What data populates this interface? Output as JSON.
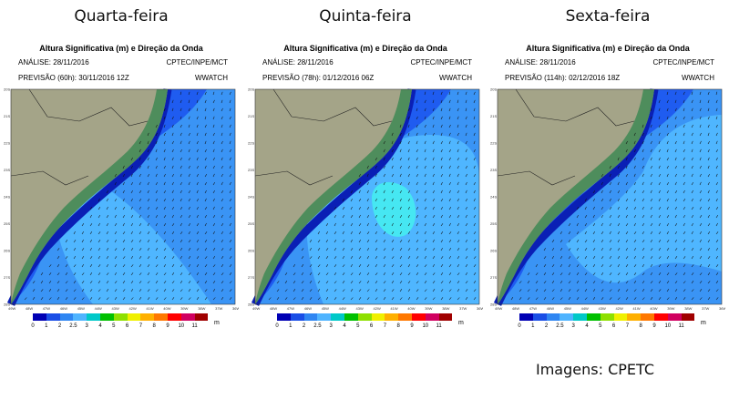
{
  "panels": [
    {
      "day": "Quarta-feira",
      "title": "Altura Significativa (m) e Direção da Onda",
      "analysis": "ANÁLISE: 28/11/2016",
      "source": "CPTEC/INPE/MCT",
      "forecast": "PREVISÃO (60h): 30/11/2016 12Z",
      "model": "WWATCH",
      "lat_labels": [
        "20S",
        "21S",
        "22S",
        "23S",
        "24S",
        "25S",
        "26S",
        "27S",
        "28S"
      ],
      "lon_labels": [
        "49W",
        "48W",
        "47W",
        "46W",
        "45W",
        "44W",
        "43W",
        "42W",
        "41W",
        "40W",
        "39W",
        "38W",
        "37W",
        "36W"
      ],
      "wave_height_levels_m": "1-2 over most of the area, 2-2.5 in a plume extending east from the coast around 24-27S"
    },
    {
      "day": "Quinta-feira",
      "title": "Altura Significativa (m) e Direção da Onda",
      "analysis": "ANÁLISE: 28/11/2016",
      "source": "CPTEC/INPE/MCT",
      "forecast": "PREVISÃO (78h): 01/12/2016 06Z",
      "model": "WWATCH",
      "lat_labels": [
        "20S",
        "21S",
        "22S",
        "23S",
        "24S",
        "25S",
        "26S",
        "27S",
        "28S"
      ],
      "lon_labels": [
        "49W",
        "48W",
        "47W",
        "46W",
        "45W",
        "44W",
        "43W",
        "42W",
        "41W",
        "40W",
        "39W",
        "38W",
        "37W",
        "36W"
      ],
      "wave_height_levels_m": "1-2 along the coast, 2-2.5 over a broad offshore region, 2.5-3 core near 24-25S 42W"
    },
    {
      "day": "Sexta-feira",
      "title": "Altura Significativa (m) e Direção da Onda",
      "analysis": "ANÁLISE: 28/11/2016",
      "source": "CPTEC/INPE/MCT",
      "forecast": "PREVISÃO (114h): 02/12/2016 18Z",
      "model": "WWATCH",
      "lat_labels": [
        "20S",
        "21S",
        "22S",
        "23S",
        "24S",
        "25S",
        "26S",
        "27S",
        "28S"
      ],
      "lon_labels": [
        "49W",
        "48W",
        "47W",
        "46W",
        "45W",
        "44W",
        "43W",
        "42W",
        "41W",
        "40W",
        "39W",
        "38W",
        "37W",
        "36W"
      ],
      "wave_height_levels_m": "1-2 near the coast and south, 2-2.5 over the northeastern offshore region"
    }
  ],
  "colorbar": {
    "labels": [
      "0",
      "1",
      "2",
      "2.5",
      "3",
      "4",
      "5",
      "6",
      "7",
      "8",
      "9",
      "10",
      "11"
    ],
    "unit": "m",
    "colors": [
      "#0000b4",
      "#1a4ee6",
      "#2f86f2",
      "#4fb4ff",
      "#00c8c8",
      "#00c000",
      "#8ee000",
      "#f0f000",
      "#ffb000",
      "#ff7800",
      "#ff0000",
      "#d00060",
      "#a00000"
    ]
  },
  "map_colors": {
    "land": "#a4a488",
    "coastal_land": "#3f8a55",
    "ocean_deep": "#1f5cf0",
    "ocean_mid": "#3a94f5",
    "ocean_plume": "#4fb6ff",
    "ocean_core": "#46e7f2"
  },
  "credit": "Imagens: CPETC"
}
